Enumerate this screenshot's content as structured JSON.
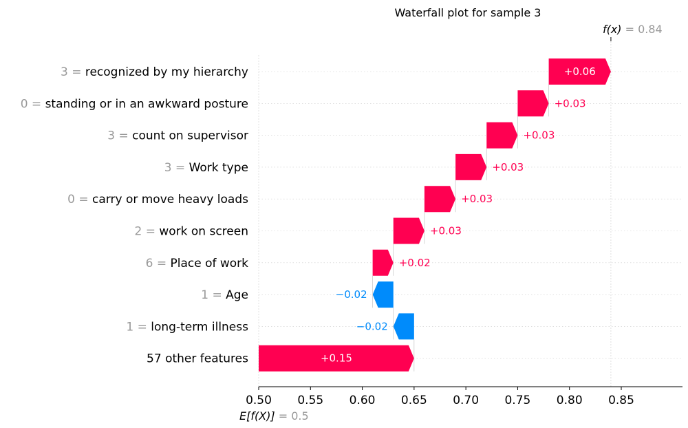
{
  "chart_data": {
    "type": "waterfall",
    "title": "Waterfall plot for sample 3",
    "base_value": 0.5,
    "base_value_label": "0.5",
    "output_value": 0.84,
    "output_value_label": "0.84",
    "fx_symbol": "f(x)",
    "ex_symbol": "E[f(X)]",
    "x_ticks": [
      "0.50",
      "0.55",
      "0.60",
      "0.65",
      "0.70",
      "0.75",
      "0.80",
      "0.85"
    ],
    "xlim": [
      0.5,
      0.895
    ],
    "features": [
      {
        "value": "3",
        "name": "recognized by my hierarchy",
        "shap": 0.06,
        "label": "+0.06"
      },
      {
        "value": "0",
        "name": "standing or in an awkward posture",
        "shap": 0.03,
        "label": "+0.03"
      },
      {
        "value": "3",
        "name": "count on supervisor",
        "shap": 0.03,
        "label": "+0.03"
      },
      {
        "value": "3",
        "name": "Work type",
        "shap": 0.03,
        "label": "+0.03"
      },
      {
        "value": "0",
        "name": "carry or move heavy loads",
        "shap": 0.03,
        "label": "+0.03"
      },
      {
        "value": "2",
        "name": "work on screen",
        "shap": 0.03,
        "label": "+0.03"
      },
      {
        "value": "6",
        "name": "Place of work",
        "shap": 0.02,
        "label": "+0.02"
      },
      {
        "value": "1",
        "name": "Age",
        "shap": -0.02,
        "label": "−0.02"
      },
      {
        "value": "1",
        "name": "long-term illness",
        "shap": -0.02,
        "label": "−0.02"
      },
      {
        "value": "",
        "name": "57 other features",
        "shap": 0.15,
        "label": "+0.15"
      }
    ],
    "colors": {
      "positive": "#ff0051",
      "negative": "#008bfb",
      "muted": "#999999"
    }
  }
}
